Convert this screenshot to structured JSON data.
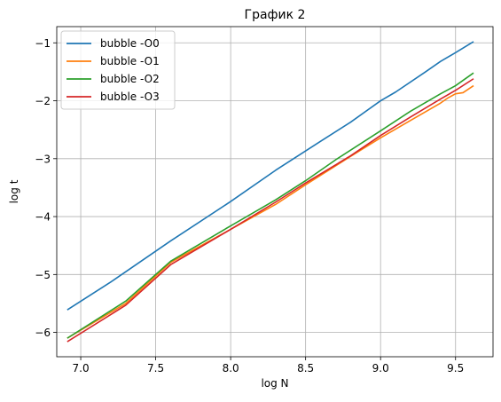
{
  "chart_data": {
    "type": "line",
    "title": "График 2",
    "xlabel": "log N",
    "ylabel": "log t",
    "xlim": [
      6.84,
      9.75
    ],
    "ylim": [
      -6.42,
      -0.72
    ],
    "xticks": [
      7.0,
      7.5,
      8.0,
      8.5,
      9.0,
      9.5
    ],
    "xtick_labels": [
      "7.0",
      "7.5",
      "8.0",
      "8.5",
      "9.0",
      "9.5"
    ],
    "yticks": [
      -6,
      -5,
      -4,
      -3,
      -2,
      -1
    ],
    "ytick_labels": [
      "−6",
      "−5",
      "−4",
      "−3",
      "−2",
      "−1"
    ],
    "grid": true,
    "legend_position": "top-left",
    "series": [
      {
        "name": "bubble -O0",
        "color": "#1f77b4",
        "points": [
          [
            6.91,
            -5.61
          ],
          [
            7.2,
            -5.13
          ],
          [
            7.6,
            -4.42
          ],
          [
            8.0,
            -3.74
          ],
          [
            8.3,
            -3.2
          ],
          [
            8.6,
            -2.7
          ],
          [
            8.8,
            -2.37
          ],
          [
            9.0,
            -2.0
          ],
          [
            9.1,
            -1.85
          ],
          [
            9.3,
            -1.5
          ],
          [
            9.4,
            -1.32
          ],
          [
            9.5,
            -1.17
          ],
          [
            9.62,
            -0.98
          ]
        ]
      },
      {
        "name": "bubble -O1",
        "color": "#ff7f0e",
        "points": [
          [
            6.91,
            -6.1
          ],
          [
            7.3,
            -5.5
          ],
          [
            7.6,
            -4.79
          ],
          [
            8.0,
            -4.22
          ],
          [
            8.3,
            -3.79
          ],
          [
            8.5,
            -3.45
          ],
          [
            8.8,
            -2.96
          ],
          [
            9.0,
            -2.64
          ],
          [
            9.2,
            -2.34
          ],
          [
            9.4,
            -2.04
          ],
          [
            9.45,
            -1.95
          ],
          [
            9.5,
            -1.88
          ],
          [
            9.55,
            -1.86
          ],
          [
            9.62,
            -1.74
          ]
        ]
      },
      {
        "name": "bubble -O2",
        "color": "#2ca02c",
        "points": [
          [
            6.91,
            -6.1
          ],
          [
            7.3,
            -5.46
          ],
          [
            7.6,
            -4.77
          ],
          [
            8.0,
            -4.16
          ],
          [
            8.3,
            -3.71
          ],
          [
            8.5,
            -3.38
          ],
          [
            8.7,
            -3.02
          ],
          [
            9.0,
            -2.52
          ],
          [
            9.2,
            -2.18
          ],
          [
            9.4,
            -1.88
          ],
          [
            9.5,
            -1.74
          ],
          [
            9.62,
            -1.52
          ]
        ]
      },
      {
        "name": "bubble -O3",
        "color": "#d62728",
        "points": [
          [
            6.91,
            -6.16
          ],
          [
            7.3,
            -5.53
          ],
          [
            7.6,
            -4.83
          ],
          [
            8.0,
            -4.22
          ],
          [
            8.3,
            -3.75
          ],
          [
            8.5,
            -3.42
          ],
          [
            8.8,
            -2.95
          ],
          [
            9.0,
            -2.6
          ],
          [
            9.2,
            -2.28
          ],
          [
            9.4,
            -1.97
          ],
          [
            9.5,
            -1.82
          ],
          [
            9.62,
            -1.62
          ]
        ]
      }
    ]
  }
}
